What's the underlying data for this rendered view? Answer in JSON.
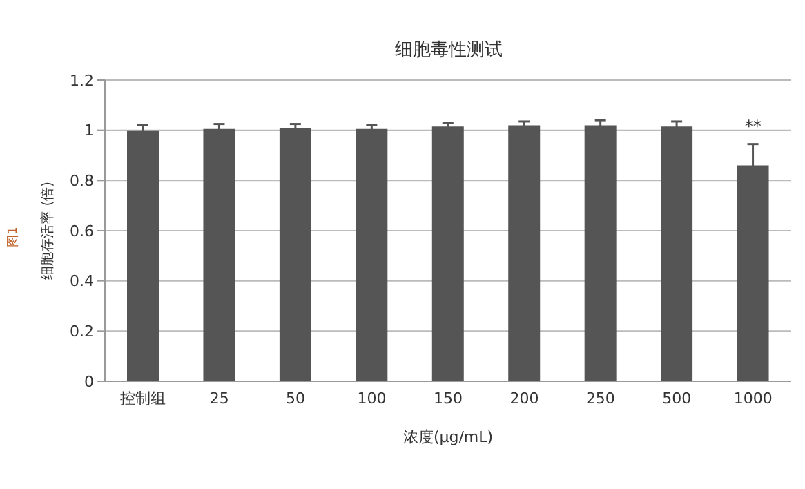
{
  "chart_data": {
    "type": "bar",
    "title": "细胞毒性测试",
    "xlabel": "浓度(μg/mL)",
    "ylabel": "细胞存活率 (倍)",
    "categories": [
      "控制组",
      "25",
      "50",
      "100",
      "150",
      "200",
      "250",
      "500",
      "1000"
    ],
    "values": [
      1.0,
      1.005,
      1.01,
      1.005,
      1.015,
      1.02,
      1.02,
      1.015,
      0.86
    ],
    "errors": [
      0.02,
      0.02,
      0.015,
      0.015,
      0.015,
      0.015,
      0.02,
      0.02,
      0.085
    ],
    "color": "#555555",
    "ylim": [
      0,
      1.2
    ],
    "yticks": [
      0,
      0.2,
      0.4,
      0.6,
      0.8,
      1,
      1.2
    ],
    "grid": "y",
    "annotations": [
      "图1",
      {
        "text": "**",
        "x": "1000",
        "y": 0.965
      }
    ]
  }
}
